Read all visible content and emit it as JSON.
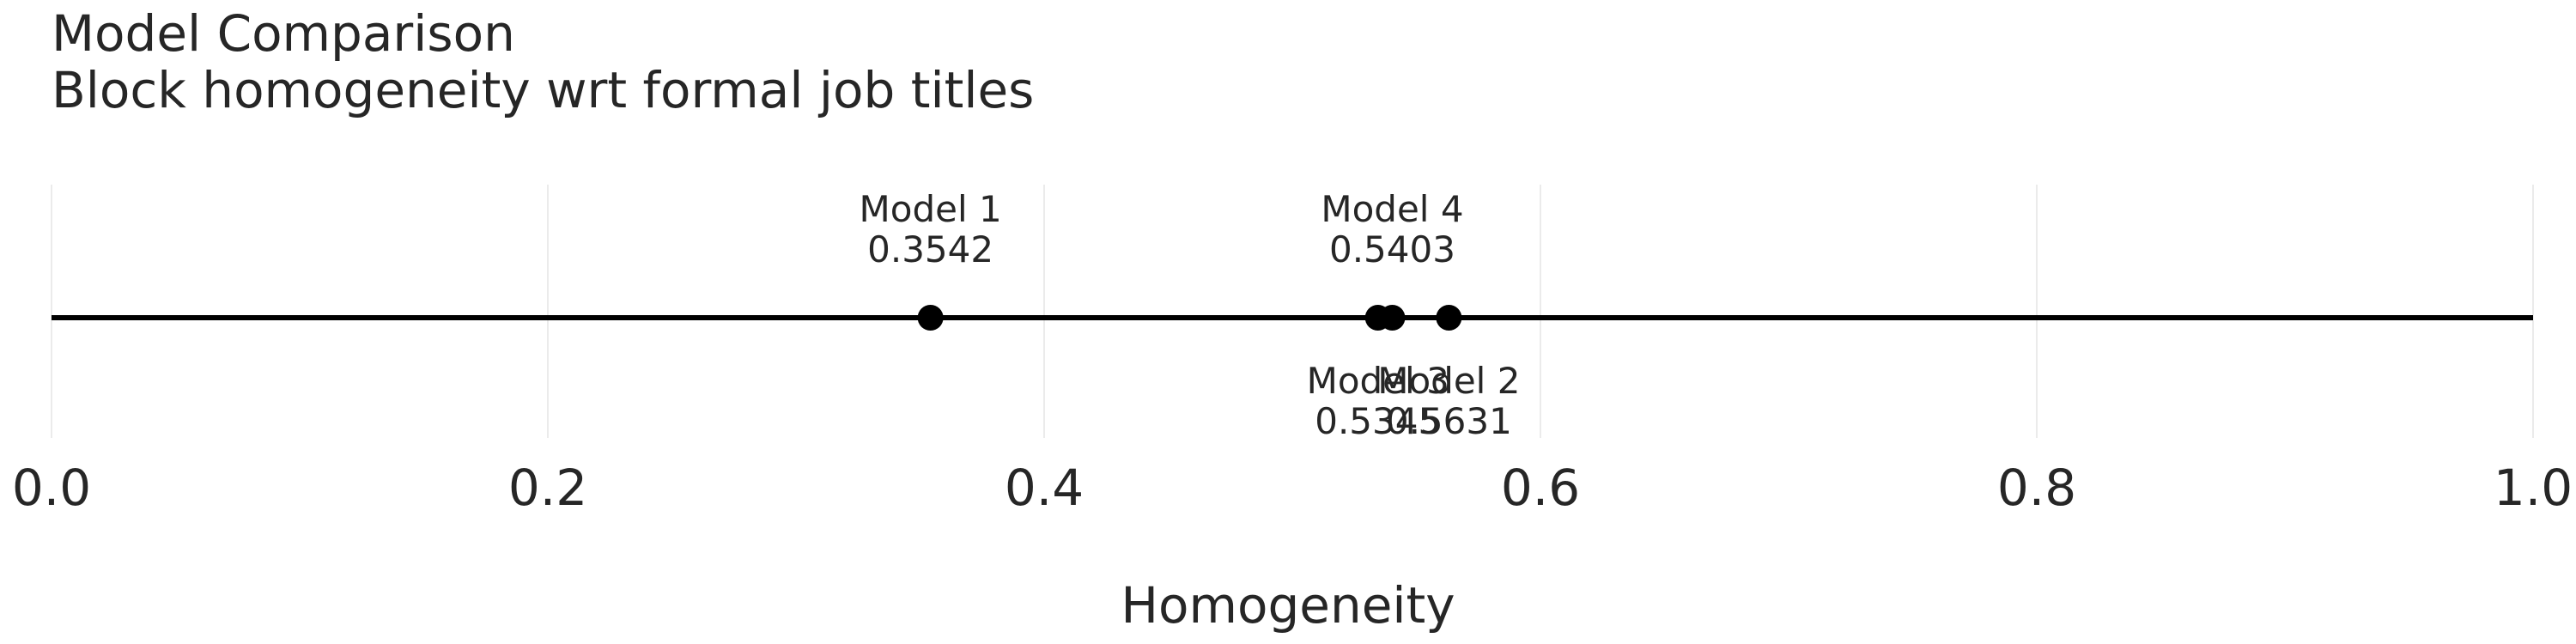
{
  "chart_data": {
    "type": "scatter",
    "title": "Model Comparison",
    "subtitle": "Block homogeneity wrt formal job titles",
    "xlabel": "Homogeneity",
    "ylabel": "",
    "xlim": [
      0.0,
      1.0
    ],
    "xticks": [
      "0.0",
      "0.2",
      "0.4",
      "0.6",
      "0.8",
      "1.0"
    ],
    "grid": "vertical",
    "points": [
      {
        "name": "Model 1",
        "x": 0.3542,
        "label": "0.3542",
        "label_side": "above"
      },
      {
        "name": "Model 2",
        "x": 0.5631,
        "label": "0.5631",
        "label_side": "below"
      },
      {
        "name": "Model 3",
        "x": 0.5345,
        "label": "0.5345",
        "label_side": "below"
      },
      {
        "name": "Model 4",
        "x": 0.5403,
        "label": "0.5403",
        "label_side": "above"
      }
    ],
    "colors": {
      "line": "#000000",
      "marker": "#000000",
      "grid": "#ebebeb",
      "text": "#262626"
    }
  }
}
